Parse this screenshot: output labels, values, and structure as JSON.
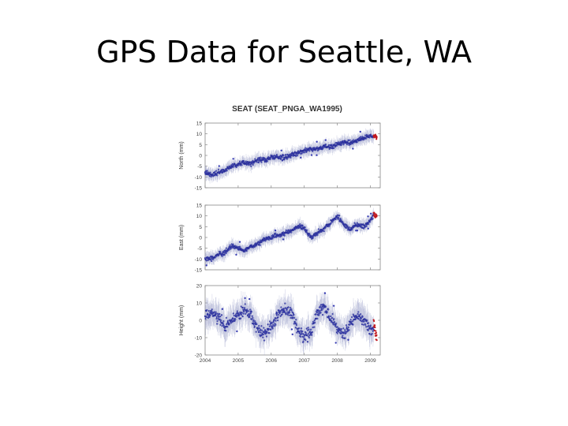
{
  "slide": {
    "title": "GPS Data for Seattle, WA"
  },
  "chart_data": {
    "type": "scatter",
    "title": "SEAT (SEAT_PNGA_WA1995)",
    "xlabel": "",
    "x_ticks": [
      "2004",
      "2005",
      "2006",
      "2007",
      "2008",
      "2009"
    ],
    "xlim": [
      2004.0,
      2009.3
    ],
    "colors": {
      "series": "#3a3fb3",
      "series_edge": "#1c2285",
      "recent": "#c0181e",
      "error_bar": "#9a9fc8"
    },
    "grid": false,
    "legend": "none",
    "panels": [
      {
        "ylabel": "North (mm)",
        "ylim": [
          -15,
          15
        ],
        "y_ticks": [
          "15",
          "10",
          "5",
          "0",
          "-5",
          "-10",
          "-15"
        ],
        "series": [
          {
            "x": [
              2004.0,
              2004.2,
              2004.4,
              2004.6,
              2004.8,
              2005.0,
              2005.2,
              2005.4,
              2005.6,
              2005.8,
              2006.0,
              2006.2,
              2006.4,
              2006.6,
              2006.8,
              2007.0,
              2007.2,
              2007.4,
              2007.6,
              2007.8,
              2008.0,
              2008.2,
              2008.4,
              2008.6,
              2008.8,
              2009.0,
              2009.1
            ],
            "y": [
              -8,
              -9,
              -8,
              -7,
              -5,
              -4,
              -3,
              -4,
              -2,
              -2,
              -1,
              -1,
              -1,
              0,
              1,
              2,
              3,
              3,
              4,
              4,
              5,
              6,
              6,
              7,
              8,
              9,
              9
            ]
          },
          {
            "x": [
              2009.1,
              2009.15,
              2009.2
            ],
            "y": [
              9,
              9,
              8
            ]
          }
        ]
      },
      {
        "ylabel": "East (mm)",
        "ylim": [
          -15,
          15
        ],
        "y_ticks": [
          "15",
          "10",
          "5",
          "0",
          "-5",
          "-10",
          "-15"
        ],
        "series": [
          {
            "x": [
              2004.0,
              2004.2,
              2004.4,
              2004.6,
              2004.8,
              2005.0,
              2005.2,
              2005.4,
              2005.6,
              2005.8,
              2006.0,
              2006.2,
              2006.4,
              2006.6,
              2006.8,
              2007.0,
              2007.2,
              2007.4,
              2007.6,
              2007.8,
              2008.0,
              2008.2,
              2008.4,
              2008.6,
              2008.8,
              2009.0,
              2009.1
            ],
            "y": [
              -10,
              -10,
              -8,
              -7,
              -4,
              -5,
              -6,
              -4,
              -3,
              -1,
              0,
              1,
              2,
              3,
              5,
              4,
              0,
              2,
              4,
              7,
              10,
              6,
              4,
              6,
              5,
              8,
              10
            ]
          },
          {
            "x": [
              2009.1,
              2009.15,
              2009.2
            ],
            "y": [
              11,
              10,
              10
            ]
          }
        ]
      },
      {
        "ylabel": "Height (mm)",
        "ylim": [
          -20,
          20
        ],
        "y_ticks": [
          "20",
          "10",
          "0",
          "-10",
          "-20"
        ],
        "series": [
          {
            "x": [
              2004.0,
              2004.2,
              2004.4,
              2004.6,
              2004.8,
              2005.0,
              2005.2,
              2005.4,
              2005.6,
              2005.8,
              2006.0,
              2006.2,
              2006.4,
              2006.6,
              2006.8,
              2007.0,
              2007.2,
              2007.4,
              2007.6,
              2007.8,
              2008.0,
              2008.2,
              2008.4,
              2008.6,
              2008.8,
              2009.0,
              2009.1
            ],
            "y": [
              2,
              5,
              2,
              -3,
              -1,
              3,
              5,
              2,
              -5,
              -8,
              -4,
              3,
              6,
              4,
              -5,
              -10,
              -7,
              4,
              7,
              2,
              -5,
              -8,
              -2,
              3,
              0,
              -5,
              -6
            ]
          },
          {
            "x": [
              2009.1,
              2009.15,
              2009.2
            ],
            "y": [
              -1,
              -6,
              -12
            ]
          }
        ]
      }
    ]
  }
}
